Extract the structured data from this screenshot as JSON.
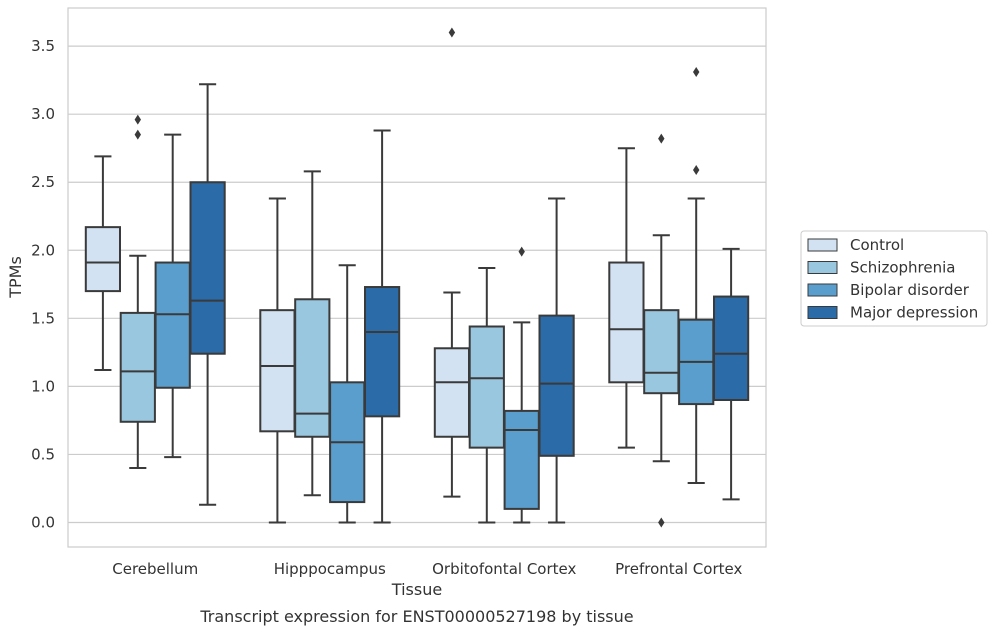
{
  "chart_data": {
    "type": "box",
    "xlabel": "Tissue",
    "ylabel": "TPMs",
    "caption": "Transcript expression for ENST00000527198 by tissue",
    "ylim": [
      -0.18,
      3.78
    ],
    "yticks": [
      0.0,
      0.5,
      1.0,
      1.5,
      2.0,
      2.5,
      3.0,
      3.5
    ],
    "ytick_labels": [
      "0.0",
      "0.5",
      "1.0",
      "1.5",
      "2.0",
      "2.5",
      "3.0",
      "3.5"
    ],
    "grid": "horizontal",
    "legend_position": "right",
    "categories": [
      "Cerebellum",
      "Hipppocampus",
      "Orbitofontal Cortex",
      "Prefrontal Cortex"
    ],
    "series": [
      {
        "name": "Control",
        "color": "#d2e2f2",
        "boxes": [
          {
            "whisker_low": 1.12,
            "q1": 1.7,
            "median": 1.91,
            "q3": 2.17,
            "whisker_high": 2.69,
            "outliers": []
          },
          {
            "whisker_low": 0.0,
            "q1": 0.67,
            "median": 1.15,
            "q3": 1.56,
            "whisker_high": 2.38,
            "outliers": []
          },
          {
            "whisker_low": 0.19,
            "q1": 0.63,
            "median": 1.03,
            "q3": 1.28,
            "whisker_high": 1.69,
            "outliers": [
              3.6
            ]
          },
          {
            "whisker_low": 0.55,
            "q1": 1.03,
            "median": 1.42,
            "q3": 1.91,
            "whisker_high": 2.75,
            "outliers": []
          }
        ]
      },
      {
        "name": "Schizophrenia",
        "color": "#9ac7e0",
        "boxes": [
          {
            "whisker_low": 0.4,
            "q1": 0.74,
            "median": 1.11,
            "q3": 1.54,
            "whisker_high": 1.96,
            "outliers": [
              2.85,
              2.96
            ]
          },
          {
            "whisker_low": 0.2,
            "q1": 0.63,
            "median": 0.8,
            "q3": 1.64,
            "whisker_high": 2.58,
            "outliers": []
          },
          {
            "whisker_low": 0.0,
            "q1": 0.55,
            "median": 1.06,
            "q3": 1.44,
            "whisker_high": 1.87,
            "outliers": []
          },
          {
            "whisker_low": 0.45,
            "q1": 0.95,
            "median": 1.1,
            "q3": 1.56,
            "whisker_high": 2.11,
            "outliers": [
              0.0,
              2.82
            ]
          }
        ]
      },
      {
        "name": "Bipolar disorder",
        "color": "#5a9ecd",
        "boxes": [
          {
            "whisker_low": 0.48,
            "q1": 0.99,
            "median": 1.53,
            "q3": 1.91,
            "whisker_high": 2.85,
            "outliers": []
          },
          {
            "whisker_low": 0.0,
            "q1": 0.15,
            "median": 0.59,
            "q3": 1.03,
            "whisker_high": 1.89,
            "outliers": []
          },
          {
            "whisker_low": 0.0,
            "q1": 0.1,
            "median": 0.68,
            "q3": 0.82,
            "whisker_high": 1.47,
            "outliers": [
              1.99
            ]
          },
          {
            "whisker_low": 0.29,
            "q1": 0.87,
            "median": 1.18,
            "q3": 1.49,
            "whisker_high": 2.38,
            "outliers": [
              2.59,
              3.31
            ]
          }
        ]
      },
      {
        "name": "Major depression",
        "color": "#2b6ba8",
        "boxes": [
          {
            "whisker_low": 0.13,
            "q1": 1.24,
            "median": 1.63,
            "q3": 2.5,
            "whisker_high": 3.22,
            "outliers": []
          },
          {
            "whisker_low": 0.0,
            "q1": 0.78,
            "median": 1.4,
            "q3": 1.73,
            "whisker_high": 2.88,
            "outliers": []
          },
          {
            "whisker_low": 0.0,
            "q1": 0.49,
            "median": 1.02,
            "q3": 1.52,
            "whisker_high": 2.38,
            "outliers": []
          },
          {
            "whisker_low": 0.17,
            "q1": 0.9,
            "median": 1.24,
            "q3": 1.66,
            "whisker_high": 2.01,
            "outliers": []
          }
        ]
      }
    ]
  }
}
